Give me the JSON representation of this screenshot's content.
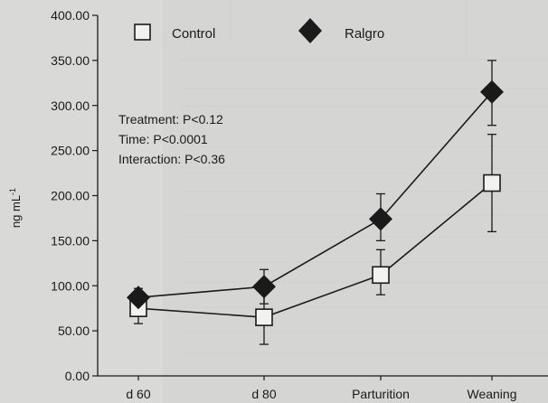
{
  "chart_data": {
    "type": "line",
    "categories": [
      "d 60",
      "d 80",
      "Parturition",
      "Weaning"
    ],
    "ylabel": "ng mL",
    "ylabel_superscript": "-1",
    "ylim": [
      0,
      400
    ],
    "yticks": [
      "0.00",
      "50.00",
      "100.00",
      "150.00",
      "200.00",
      "250.00",
      "300.00",
      "350.00",
      "400.00"
    ],
    "series": [
      {
        "name": "Control",
        "marker": "square-open",
        "values": [
          75,
          65,
          112,
          214
        ],
        "error_low": [
          58,
          35,
          90,
          160
        ],
        "error_high": [
          90,
          100,
          140,
          268
        ],
        "color": "#1a1a1a"
      },
      {
        "name": "Ralgro",
        "marker": "diamond-filled",
        "values": [
          87,
          99,
          174,
          315
        ],
        "error_low": [
          70,
          80,
          150,
          278
        ],
        "error_high": [
          97,
          118,
          202,
          350
        ],
        "color": "#1a1a1a"
      }
    ],
    "annotations": [
      "Treatment: P<0.12",
      "Time: P<0.0001",
      "Interaction: P<0.36"
    ],
    "legend_position": "top",
    "grid": false
  }
}
